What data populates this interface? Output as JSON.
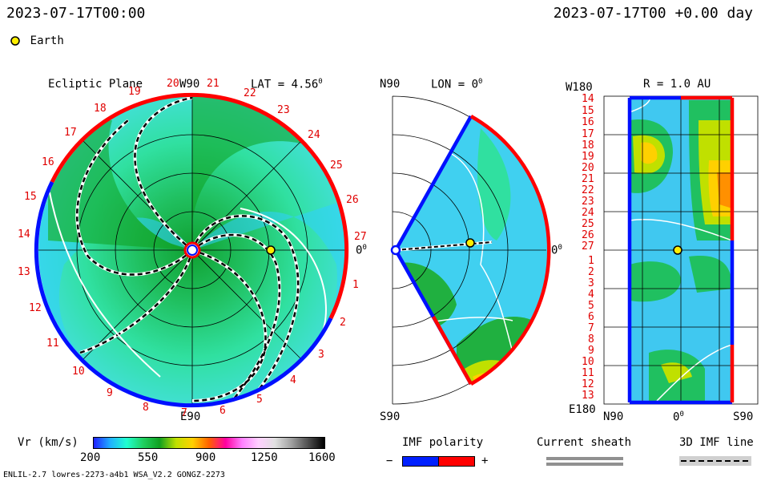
{
  "header": {
    "timestamp_left": "2023-07-17T00:00",
    "timestamp_right": "2023-07-17T00 +0.00 day"
  },
  "legend": {
    "earth_label": "Earth",
    "earth_color": "#ffee00"
  },
  "ecliptic_panel": {
    "title": "Ecliptic Plane",
    "top_label": "W90",
    "lat_label": "LAT = 4.56",
    "lat_unit": "0",
    "right_label": "0",
    "right_label_unit": "0",
    "bottom_label": "E90",
    "rotation_numbers": [
      "20",
      "21",
      "22",
      "23",
      "24",
      "25",
      "26",
      "27",
      "1",
      "2",
      "3",
      "4",
      "5",
      "6",
      "7",
      "8",
      "9",
      "10",
      "11",
      "12",
      "13",
      "14",
      "15",
      "16",
      "17",
      "18",
      "19"
    ]
  },
  "meridional_panel": {
    "top_left_label": "N90",
    "lon_label": "LON = 0",
    "lon_unit": "0",
    "right_label": "0",
    "right_label_unit": "0",
    "bottom_left_label": "S90"
  },
  "radial_panel": {
    "top_left_label": "W180",
    "r_label": "R = 1.0 AU",
    "bottom_left_label": "E180",
    "bottom_axis_left": "N90",
    "bottom_axis_mid": "0",
    "bottom_axis_mid_unit": "0",
    "bottom_axis_right": "S90",
    "rotation_numbers": [
      "14",
      "15",
      "16",
      "17",
      "18",
      "19",
      "20",
      "21",
      "22",
      "23",
      "24",
      "25",
      "26",
      "27",
      "1",
      "2",
      "3",
      "4",
      "5",
      "6",
      "7",
      "8",
      "9",
      "10",
      "11",
      "12",
      "13"
    ]
  },
  "colorbar": {
    "title": "Vr (km/s)",
    "ticks": [
      "200",
      "550",
      "900",
      "1250",
      "1600"
    ],
    "colors": [
      "#2020ff",
      "#20b0ff",
      "#20ffd0",
      "#20d060",
      "#10a020",
      "#c0e000",
      "#ffd000",
      "#ff6000",
      "#ff00a0",
      "#ff80ff",
      "#ffd0ff",
      "#e0e0e0",
      "#a0a0a0",
      "#505050",
      "#000000"
    ]
  },
  "imf_polarity": {
    "title": "IMF polarity",
    "minus": "−",
    "plus": "+",
    "neg_color": "#0020ff",
    "pos_color": "#ff0000"
  },
  "current_sheath": {
    "title": "Current sheath"
  },
  "imf_line": {
    "title": "3D IMF line"
  },
  "footer": {
    "model_info": "ENLIL-2.7 lowres-2273-a4b1 WSA_V2.2 GONGZ-2273"
  }
}
